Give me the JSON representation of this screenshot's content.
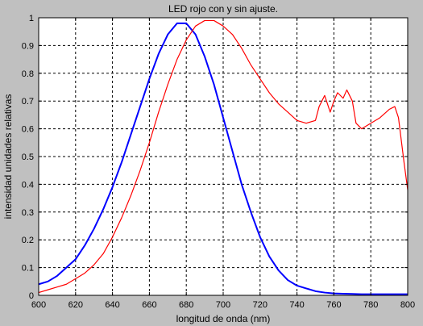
{
  "chart_data": {
    "type": "line",
    "title": "LED rojo con y sin ajuste.",
    "xlabel": "longitud de onda (nm)",
    "ylabel": "intensidad unidades relativas",
    "xlim": [
      600,
      800
    ],
    "ylim": [
      0,
      1
    ],
    "xticks": [
      "600",
      "620",
      "640",
      "660",
      "680",
      "700",
      "720",
      "740",
      "760",
      "780",
      "800"
    ],
    "yticks": [
      "0",
      "0.1",
      "0.2",
      "0.3",
      "0.4",
      "0.5",
      "0.6",
      "0.7",
      "0.8",
      "0.9",
      "1"
    ],
    "grid": true,
    "series": [
      {
        "color": "#0000ff",
        "x": [
          600,
          605,
          610,
          615,
          620,
          625,
          630,
          635,
          640,
          645,
          650,
          655,
          660,
          665,
          670,
          675,
          680,
          685,
          690,
          695,
          700,
          705,
          710,
          715,
          720,
          725,
          730,
          735,
          740,
          745,
          750,
          755,
          760,
          765,
          770,
          775,
          780,
          785,
          790,
          795,
          800
        ],
        "y": [
          0.04,
          0.05,
          0.07,
          0.1,
          0.13,
          0.18,
          0.24,
          0.31,
          0.39,
          0.48,
          0.58,
          0.68,
          0.78,
          0.87,
          0.94,
          0.98,
          0.98,
          0.94,
          0.86,
          0.76,
          0.64,
          0.52,
          0.4,
          0.3,
          0.21,
          0.14,
          0.09,
          0.055,
          0.035,
          0.025,
          0.015,
          0.01,
          0.007,
          0.006,
          0.005,
          0.004,
          0.004,
          0.004,
          0.004,
          0.004,
          0.004
        ]
      },
      {
        "color": "#ff0000",
        "x": [
          600,
          605,
          610,
          615,
          620,
          625,
          630,
          635,
          640,
          645,
          650,
          655,
          660,
          665,
          670,
          675,
          680,
          685,
          690,
          695,
          700,
          705,
          710,
          715,
          720,
          725,
          730,
          735,
          740,
          745,
          750,
          752,
          755,
          758,
          760,
          762,
          765,
          767,
          770,
          772,
          775,
          780,
          785,
          790,
          793,
          795,
          798,
          800
        ],
        "y": [
          0.01,
          0.02,
          0.03,
          0.04,
          0.06,
          0.08,
          0.11,
          0.15,
          0.21,
          0.28,
          0.36,
          0.45,
          0.55,
          0.66,
          0.76,
          0.85,
          0.92,
          0.97,
          0.99,
          0.99,
          0.97,
          0.94,
          0.89,
          0.83,
          0.78,
          0.73,
          0.69,
          0.66,
          0.63,
          0.62,
          0.63,
          0.68,
          0.72,
          0.66,
          0.7,
          0.73,
          0.71,
          0.74,
          0.7,
          0.62,
          0.6,
          0.62,
          0.64,
          0.67,
          0.68,
          0.64,
          0.48,
          0.38
        ]
      }
    ]
  }
}
